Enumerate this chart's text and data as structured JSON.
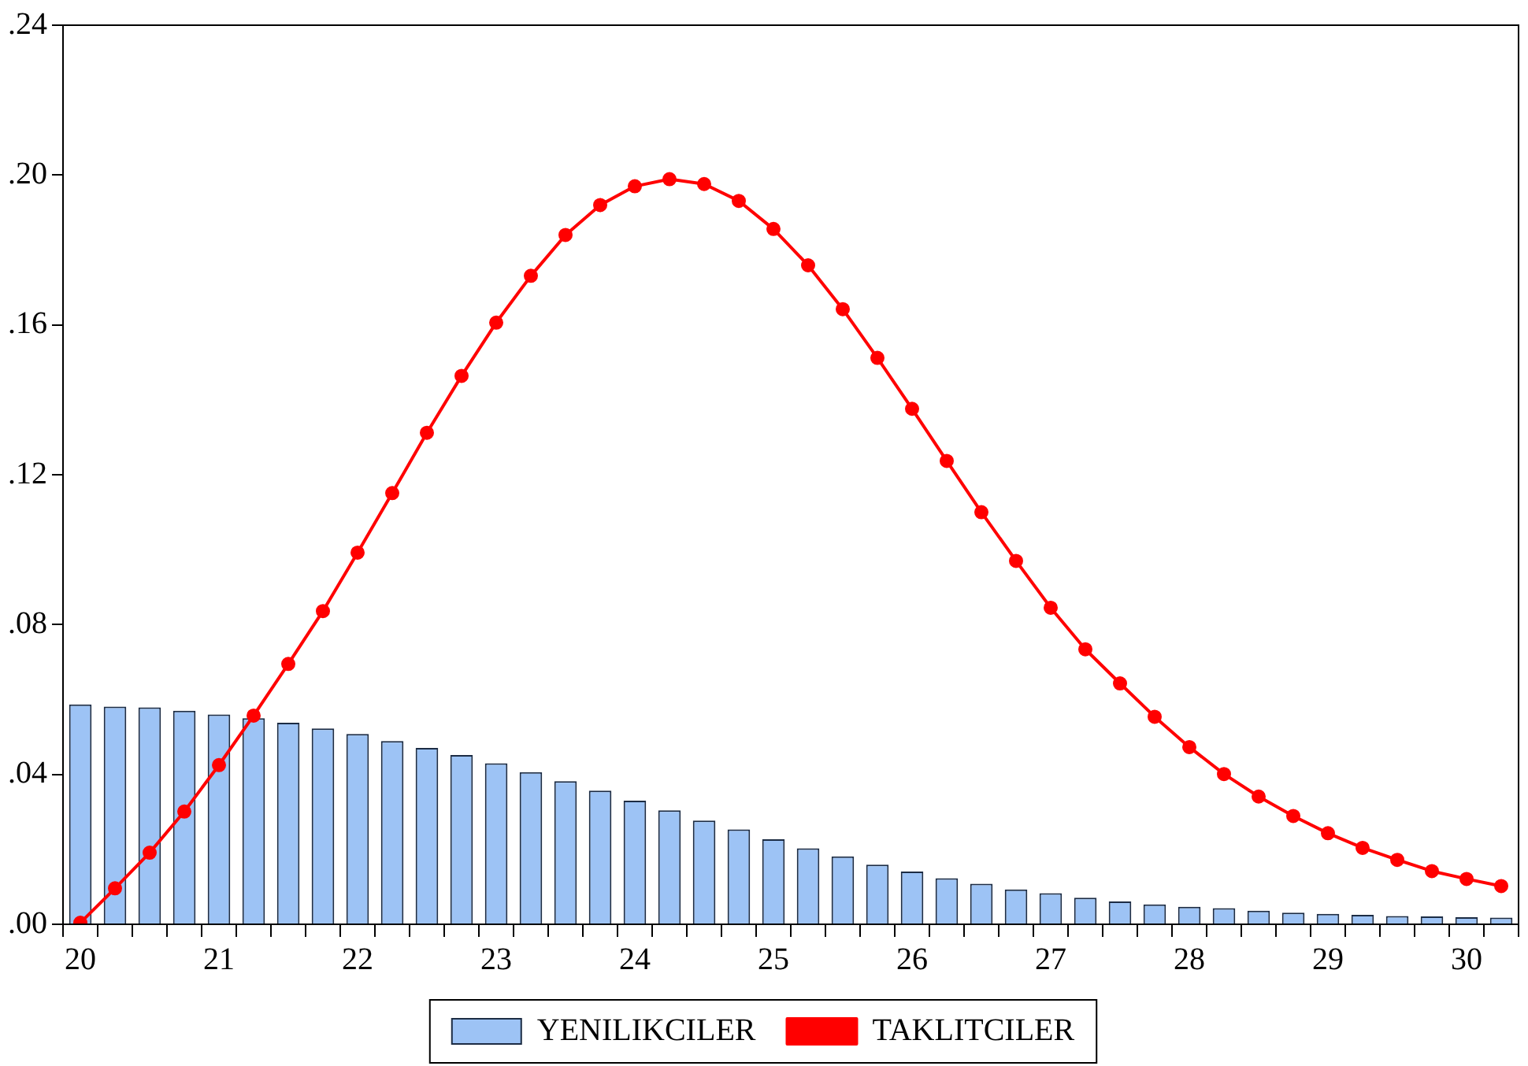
{
  "chart_data": {
    "type": "bar",
    "categories": [
      "20",
      null,
      null,
      null,
      "21",
      null,
      null,
      null,
      "22",
      null,
      null,
      null,
      "23",
      null,
      null,
      null,
      "24",
      null,
      null,
      null,
      "25",
      null,
      null,
      null,
      "26",
      null,
      null,
      null,
      "27",
      null,
      null,
      null,
      "28",
      null,
      null,
      null,
      "29",
      null,
      null,
      null,
      "30",
      null
    ],
    "series": [
      {
        "name": "YENILIKCILER",
        "color": "#9dc3f5",
        "values": [
          0.0587,
          0.0581,
          0.0579,
          0.057,
          0.056,
          0.055,
          0.0538,
          0.0523,
          0.0508,
          0.0489,
          0.0471,
          0.0452,
          0.043,
          0.0406,
          0.0382,
          0.0357,
          0.033,
          0.0304,
          0.0277,
          0.0253,
          0.0227,
          0.0203,
          0.0181,
          0.0159,
          0.0141,
          0.0123,
          0.0108,
          0.0093,
          0.0083,
          0.0071,
          0.0061,
          0.0053,
          0.0047,
          0.0043,
          0.0036,
          0.0031,
          0.0028,
          0.0025,
          0.0022,
          0.0021,
          0.0019,
          0.0018
        ]
      },
      {
        "name": "TAKLITCILER",
        "type": "line",
        "color": "#ff0000",
        "marker": "circle",
        "values": [
          0.0004,
          0.0096,
          0.0191,
          0.0301,
          0.0425,
          0.0557,
          0.0695,
          0.0836,
          0.0992,
          0.1151,
          0.1312,
          0.1464,
          0.1606,
          0.1731,
          0.184,
          0.192,
          0.197,
          0.1989,
          0.1976,
          0.1931,
          0.1856,
          0.1759,
          0.1642,
          0.1512,
          0.1376,
          0.1237,
          0.11,
          0.097,
          0.0845,
          0.0734,
          0.0643,
          0.0554,
          0.0473,
          0.0401,
          0.0341,
          0.0289,
          0.0243,
          0.0204,
          0.0172,
          0.0142,
          0.0121,
          0.0102
        ]
      }
    ],
    "ylim": [
      0,
      0.24
    ],
    "yticks": [
      {
        "value": 0,
        "label": ".00"
      },
      {
        "value": 0.04,
        "label": ".04"
      },
      {
        "value": 0.08,
        "label": ".08"
      },
      {
        "value": 0.12,
        "label": ".12"
      },
      {
        "value": 0.16,
        "label": ".16"
      },
      {
        "value": 0.2,
        "label": ".20"
      },
      {
        "value": 0.24,
        "label": ".24"
      }
    ],
    "grid": false,
    "legend": "bottom"
  }
}
